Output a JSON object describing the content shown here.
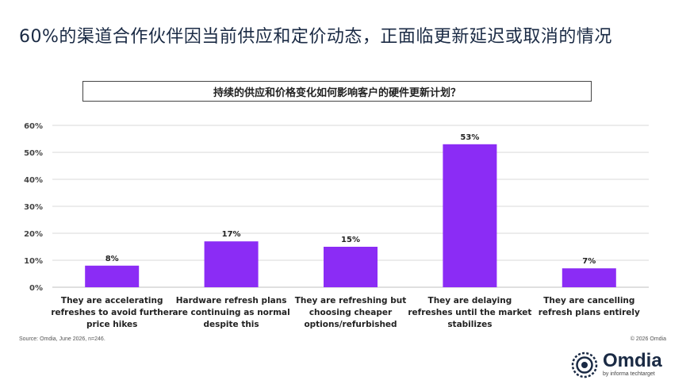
{
  "slide": {
    "title": "60%的渠道合作伙伴因当前供应和定价动态，正面临更新延迟或取消的情况",
    "question": "持续的供应和价格变化如何影响客户的硬件更新计划？",
    "source": "Source: Omdia, June 2026, n=246.",
    "copyright": "© 2026 Omdia",
    "logo_name": "Omdia",
    "logo_sub": "by informa techtarget"
  },
  "colors": {
    "bar": "#8b2cf5",
    "grid": "#d9d9d9",
    "text": "#222222",
    "title": "#1a2a44"
  },
  "chart_data": {
    "type": "bar",
    "categories": [
      [
        "They are accelerating",
        "refreshes to avoid further",
        "price hikes"
      ],
      [
        "Hardware refresh plans",
        "are continuing as normal",
        "despite this"
      ],
      [
        "They are refreshing but",
        "choosing cheaper",
        "options/refurbished"
      ],
      [
        "They are delaying",
        "refreshes until the market",
        "stabilizes"
      ],
      [
        "They are cancelling",
        "refresh plans entirely"
      ]
    ],
    "values": [
      8,
      17,
      15,
      53,
      7
    ],
    "value_labels": [
      "8%",
      "17%",
      "15%",
      "53%",
      "7%"
    ],
    "yticks": [
      "0%",
      "10%",
      "20%",
      "30%",
      "40%",
      "50%",
      "60%"
    ],
    "ylim": [
      0,
      60
    ],
    "grid": true,
    "legend": "none"
  }
}
